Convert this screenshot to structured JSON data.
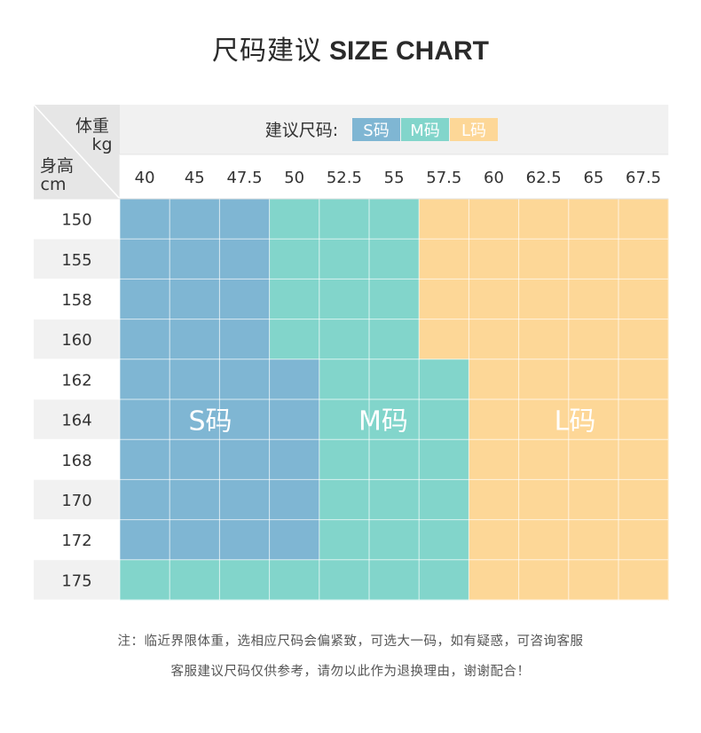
{
  "title": {
    "cn": "尺码建议",
    "en": "SIZE CHART"
  },
  "chart_data": {
    "type": "table",
    "corner": {
      "top_label": "体重",
      "top_unit": "kg",
      "bottom_label": "身高",
      "bottom_unit": "cm"
    },
    "legend": {
      "prefix": "建议尺码:",
      "items": [
        "S码",
        "M码",
        "L码"
      ]
    },
    "weights": [
      "40",
      "45",
      "47.5",
      "50",
      "52.5",
      "55",
      "57.5",
      "60",
      "62.5",
      "65",
      "67.5"
    ],
    "heights": [
      "150",
      "155",
      "158",
      "160",
      "162",
      "164",
      "168",
      "170",
      "172",
      "175"
    ],
    "size_grid": [
      [
        "S",
        "S",
        "S",
        "M",
        "M",
        "M",
        "L",
        "L",
        "L",
        "L",
        "L"
      ],
      [
        "S",
        "S",
        "S",
        "M",
        "M",
        "M",
        "L",
        "L",
        "L",
        "L",
        "L"
      ],
      [
        "S",
        "S",
        "S",
        "M",
        "M",
        "M",
        "L",
        "L",
        "L",
        "L",
        "L"
      ],
      [
        "S",
        "S",
        "S",
        "M",
        "M",
        "M",
        "L",
        "L",
        "L",
        "L",
        "L"
      ],
      [
        "S",
        "S",
        "S",
        "S",
        "M",
        "M",
        "M",
        "L",
        "L",
        "L",
        "L"
      ],
      [
        "S",
        "S",
        "S",
        "S",
        "M",
        "M",
        "M",
        "L",
        "L",
        "L",
        "L"
      ],
      [
        "S",
        "S",
        "S",
        "S",
        "M",
        "M",
        "M",
        "L",
        "L",
        "L",
        "L"
      ],
      [
        "S",
        "S",
        "S",
        "S",
        "M",
        "M",
        "M",
        "L",
        "L",
        "L",
        "L"
      ],
      [
        "S",
        "S",
        "S",
        "S",
        "M",
        "M",
        "M",
        "L",
        "L",
        "L",
        "L"
      ],
      [
        "M",
        "M",
        "M",
        "M",
        "M",
        "M",
        "M",
        "L",
        "L",
        "L",
        "L"
      ]
    ],
    "region_labels": [
      "S码",
      "M码",
      "L码"
    ],
    "colors": {
      "S": "#7fb6d3",
      "M": "#82d5cb",
      "L": "#fdd797"
    }
  },
  "notes": [
    "注：临近界限体重，选相应尺码会偏紧致，可选大一码，如有疑惑，可咨询客服",
    "客服建议尺码仅供参考，请勿以此作为退换理由，谢谢配合！"
  ]
}
